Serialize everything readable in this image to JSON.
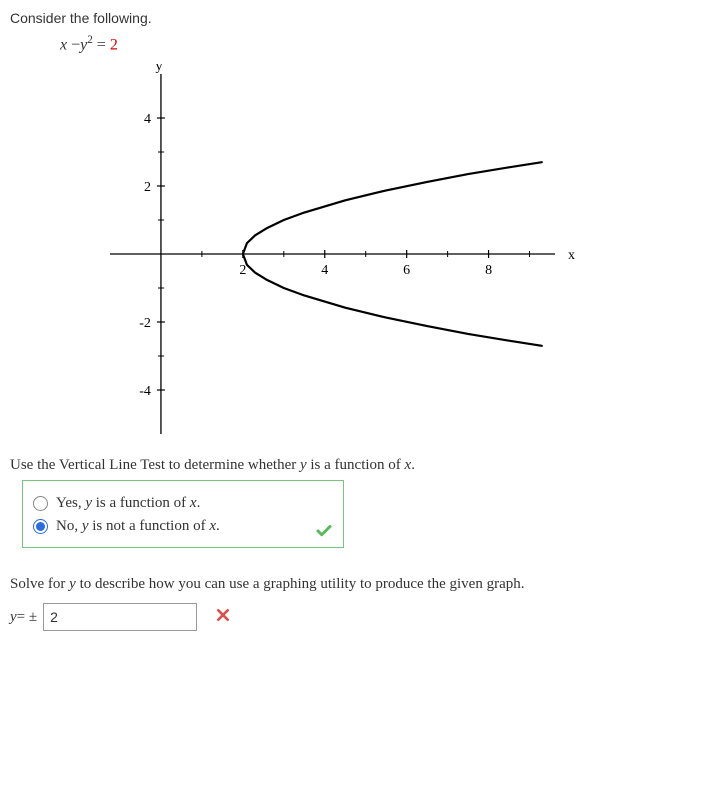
{
  "header": "Consider the following.",
  "equation": {
    "lhs_var1": "x",
    "minus": " −",
    "lhs_var2": "y",
    "exp": "2",
    "eq": " = ",
    "rhs": "2"
  },
  "chart": {
    "type": "line",
    "x_label": "x",
    "y_label": "y",
    "xlim": [
      -1,
      9.5
    ],
    "ylim": [
      -5,
      5
    ],
    "x_ticks": [
      2,
      4,
      6,
      8
    ],
    "y_ticks": [
      -4,
      -2,
      2,
      4
    ],
    "tick_fontsize": 14,
    "axis_color": "#000000",
    "curve_color": "#000000",
    "curve_width": 2.2,
    "background": "#ffffff",
    "curve_points": [
      [
        9.3,
        2.7
      ],
      [
        8.5,
        2.55
      ],
      [
        7.5,
        2.35
      ],
      [
        6.5,
        2.12
      ],
      [
        5.5,
        1.87
      ],
      [
        4.5,
        1.58
      ],
      [
        3.5,
        1.22
      ],
      [
        3.0,
        1.0
      ],
      [
        2.6,
        0.77
      ],
      [
        2.3,
        0.55
      ],
      [
        2.1,
        0.32
      ],
      [
        2.0,
        0.0
      ],
      [
        2.1,
        -0.32
      ],
      [
        2.3,
        -0.55
      ],
      [
        2.6,
        -0.77
      ],
      [
        3.0,
        -1.0
      ],
      [
        3.5,
        -1.22
      ],
      [
        4.5,
        -1.58
      ],
      [
        5.5,
        -1.87
      ],
      [
        6.5,
        -2.12
      ],
      [
        7.5,
        -2.35
      ],
      [
        8.5,
        -2.55
      ],
      [
        9.3,
        -2.7
      ]
    ]
  },
  "vlt_prompt": "Use the Vertical Line Test to determine whether ",
  "vlt_prompt_y": "y",
  "vlt_prompt_mid": " is a function of ",
  "vlt_prompt_x": "x",
  "vlt_prompt_end": ".",
  "options": [
    {
      "label_pre": "Yes, ",
      "y": "y",
      "mid": " is a function of ",
      "x": "x",
      "end": ".",
      "selected": false
    },
    {
      "label_pre": "No, ",
      "y": "y",
      "mid": " is not a function of ",
      "x": "x",
      "end": ".",
      "selected": true
    }
  ],
  "radio_correct": true,
  "solve_prompt": "Solve for ",
  "solve_y": "y",
  "solve_prompt_end": " to describe how you can use a graphing utility to produce the given graph.",
  "answer": {
    "y": "y",
    "equals": " = ± ",
    "value": "2",
    "correct": false
  },
  "icons": {
    "check_color": "#5cb85c",
    "x_color": "#d9534f"
  }
}
